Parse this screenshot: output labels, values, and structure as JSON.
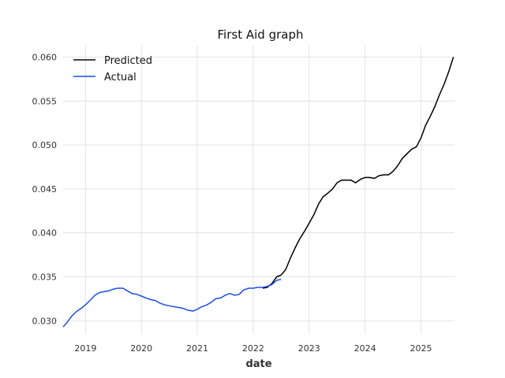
{
  "chart_data": {
    "type": "line",
    "title": "First Aid graph",
    "xlabel": "date",
    "ylabel": "",
    "xlim": [
      2018.6,
      2025.6
    ],
    "ylim": [
      0.0285,
      0.0613
    ],
    "x_ticks": [
      2019,
      2020,
      2021,
      2022,
      2023,
      2024,
      2025
    ],
    "x_tick_labels": [
      "2019",
      "2020",
      "2021",
      "2022",
      "2023",
      "2024",
      "2025"
    ],
    "y_ticks": [
      0.03,
      0.035,
      0.04,
      0.045,
      0.05,
      0.055,
      0.06
    ],
    "y_tick_labels": [
      "0.030",
      "0.035",
      "0.040",
      "0.045",
      "0.050",
      "0.055",
      "0.060"
    ],
    "grid": true,
    "legend": {
      "position": "top-left"
    },
    "series": [
      {
        "name": "Predicted",
        "color": "#000000",
        "points": [
          [
            2022.17,
            0.0337
          ],
          [
            2022.25,
            0.0338
          ],
          [
            2022.33,
            0.0342
          ],
          [
            2022.42,
            0.035
          ],
          [
            2022.5,
            0.0352
          ],
          [
            2022.58,
            0.0358
          ],
          [
            2022.67,
            0.0372
          ],
          [
            2022.75,
            0.0383
          ],
          [
            2022.83,
            0.0393
          ],
          [
            2022.92,
            0.0402
          ],
          [
            2023.0,
            0.0411
          ],
          [
            2023.08,
            0.042
          ],
          [
            2023.17,
            0.0433
          ],
          [
            2023.25,
            0.0441
          ],
          [
            2023.33,
            0.0445
          ],
          [
            2023.42,
            0.045
          ],
          [
            2023.5,
            0.0457
          ],
          [
            2023.58,
            0.046
          ],
          [
            2023.67,
            0.046
          ],
          [
            2023.75,
            0.046
          ],
          [
            2023.83,
            0.0457
          ],
          [
            2023.92,
            0.0461
          ],
          [
            2024.0,
            0.0463
          ],
          [
            2024.08,
            0.0463
          ],
          [
            2024.17,
            0.0462
          ],
          [
            2024.25,
            0.0465
          ],
          [
            2024.33,
            0.0466
          ],
          [
            2024.42,
            0.0466
          ],
          [
            2024.5,
            0.047
          ],
          [
            2024.58,
            0.0476
          ],
          [
            2024.67,
            0.0485
          ],
          [
            2024.75,
            0.049
          ],
          [
            2024.83,
            0.0495
          ],
          [
            2024.92,
            0.0498
          ],
          [
            2025.0,
            0.0508
          ],
          [
            2025.08,
            0.0522
          ],
          [
            2025.17,
            0.0533
          ],
          [
            2025.25,
            0.0544
          ],
          [
            2025.33,
            0.0557
          ],
          [
            2025.42,
            0.057
          ],
          [
            2025.5,
            0.0584
          ],
          [
            2025.58,
            0.06
          ]
        ]
      },
      {
        "name": "Actual",
        "color": "#1a4fe0",
        "points": [
          [
            2018.6,
            0.0293
          ],
          [
            2018.67,
            0.0298
          ],
          [
            2018.75,
            0.0305
          ],
          [
            2018.83,
            0.031
          ],
          [
            2018.92,
            0.0314
          ],
          [
            2019.0,
            0.0318
          ],
          [
            2019.08,
            0.0323
          ],
          [
            2019.17,
            0.0329
          ],
          [
            2019.25,
            0.0332
          ],
          [
            2019.33,
            0.0333
          ],
          [
            2019.42,
            0.0334
          ],
          [
            2019.5,
            0.0336
          ],
          [
            2019.58,
            0.0337
          ],
          [
            2019.67,
            0.0337
          ],
          [
            2019.75,
            0.0334
          ],
          [
            2019.83,
            0.0331
          ],
          [
            2019.92,
            0.033
          ],
          [
            2020.0,
            0.0328
          ],
          [
            2020.08,
            0.0326
          ],
          [
            2020.17,
            0.0324
          ],
          [
            2020.25,
            0.0323
          ],
          [
            2020.33,
            0.032
          ],
          [
            2020.42,
            0.0318
          ],
          [
            2020.5,
            0.0317
          ],
          [
            2020.58,
            0.0316
          ],
          [
            2020.67,
            0.0315
          ],
          [
            2020.75,
            0.0314
          ],
          [
            2020.83,
            0.0312
          ],
          [
            2020.92,
            0.0311
          ],
          [
            2021.0,
            0.0313
          ],
          [
            2021.08,
            0.0316
          ],
          [
            2021.17,
            0.0318
          ],
          [
            2021.25,
            0.0321
          ],
          [
            2021.33,
            0.0325
          ],
          [
            2021.42,
            0.0326
          ],
          [
            2021.5,
            0.0329
          ],
          [
            2021.58,
            0.0331
          ],
          [
            2021.67,
            0.0329
          ],
          [
            2021.75,
            0.033
          ],
          [
            2021.83,
            0.0335
          ],
          [
            2021.92,
            0.0337
          ],
          [
            2022.0,
            0.0337
          ],
          [
            2022.08,
            0.0338
          ],
          [
            2022.17,
            0.0338
          ],
          [
            2022.25,
            0.0339
          ],
          [
            2022.33,
            0.0341
          ],
          [
            2022.42,
            0.0346
          ],
          [
            2022.5,
            0.0347
          ]
        ]
      }
    ]
  }
}
